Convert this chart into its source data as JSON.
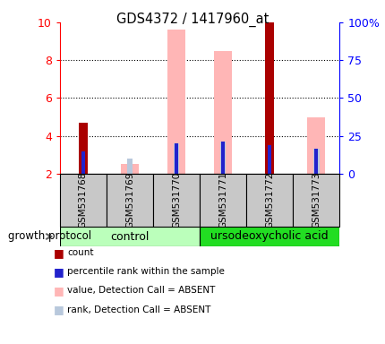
{
  "title": "GDS4372 / 1417960_at",
  "samples": [
    "GSM531768",
    "GSM531769",
    "GSM531770",
    "GSM531771",
    "GSM531772",
    "GSM531773"
  ],
  "ylim_left": [
    2,
    10
  ],
  "ylim_right": [
    0,
    100
  ],
  "yticks_left": [
    2,
    4,
    6,
    8,
    10
  ],
  "yticks_right": [
    0,
    25,
    50,
    75,
    100
  ],
  "yticklabels_right": [
    "0",
    "25",
    "50",
    "75",
    "100%"
  ],
  "count_values": [
    4.7,
    0,
    0,
    0,
    10.0,
    0
  ],
  "percentile_values": [
    3.2,
    0,
    3.6,
    3.7,
    3.5,
    3.3
  ],
  "value_absent": [
    0,
    2.5,
    9.6,
    8.5,
    0,
    5.0
  ],
  "rank_absent": [
    0,
    2.8,
    3.6,
    3.7,
    0,
    3.3
  ],
  "count_color": "#AA0000",
  "percentile_color": "#2222CC",
  "value_absent_color": "#FFB6B6",
  "rank_absent_color": "#B8C8DC",
  "group_control_color": "#BBFFBB",
  "group_acid_color": "#22DD22",
  "group_bg_color": "#C8C8C8",
  "group_label": "growth protocol",
  "legend_items": [
    {
      "color": "#AA0000",
      "label": "count"
    },
    {
      "color": "#2222CC",
      "label": "percentile rank within the sample"
    },
    {
      "color": "#FFB6B6",
      "label": "value, Detection Call = ABSENT"
    },
    {
      "color": "#B8C8DC",
      "label": "rank, Detection Call = ABSENT"
    }
  ]
}
